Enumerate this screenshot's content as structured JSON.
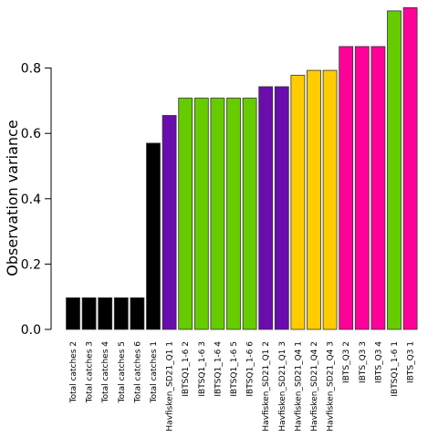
{
  "chart_data": {
    "type": "bar",
    "ylabel": "Observation variance",
    "ylim": [
      0,
      0.99
    ],
    "yticks": [
      0.0,
      0.2,
      0.4,
      0.6,
      0.8
    ],
    "ytick_labels": [
      "0.0",
      "0.2",
      "0.4",
      "0.6",
      "0.8"
    ],
    "categories": [
      "Total catches 2",
      "Total catches 3",
      "Total catches 4",
      "Total catches 5",
      "Total catches 6",
      "Total catches 1",
      "Havfisken_SD21_Q1 1",
      "IBTSQ1_1-6 2",
      "IBTSQ1_1-6 3",
      "IBTSQ1_1-6 4",
      "IBTSQ1_1-6 5",
      "IBTSQ1_1-6 6",
      "Havfisken_SD21_Q1 2",
      "Havfisken_SD21_Q1 3",
      "Havfisken_SD21_Q4 1",
      "Havfisken_SD21_Q4 2",
      "Havfisken_SD21_Q4 3",
      "IBTS_Q3 2",
      "IBTS_Q3 3",
      "IBTS_Q3 4",
      "IBTSQ1_1-6 1",
      "IBTS_Q3 1"
    ],
    "values": [
      0.097,
      0.097,
      0.097,
      0.097,
      0.097,
      0.57,
      0.655,
      0.708,
      0.708,
      0.708,
      0.708,
      0.708,
      0.743,
      0.743,
      0.778,
      0.793,
      0.793,
      0.866,
      0.866,
      0.866,
      0.975,
      0.985
    ],
    "colors": [
      "#000000",
      "#000000",
      "#000000",
      "#000000",
      "#000000",
      "#000000",
      "#6a0dad",
      "#66cc00",
      "#66cc00",
      "#66cc00",
      "#66cc00",
      "#66cc00",
      "#6a0dad",
      "#6a0dad",
      "#ffcc00",
      "#ffcc00",
      "#ffcc00",
      "#ff0099",
      "#ff0099",
      "#ff0099",
      "#66cc00",
      "#ff0099"
    ],
    "grid": false,
    "legend": "none"
  }
}
